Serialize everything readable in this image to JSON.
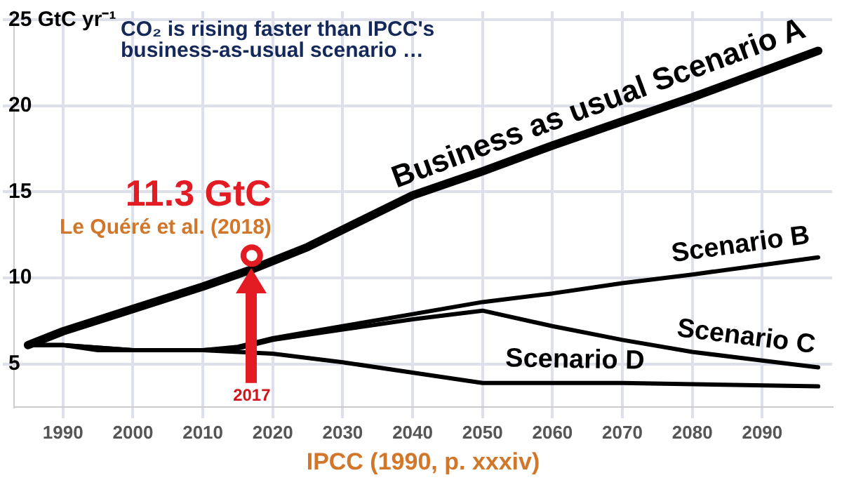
{
  "chart_data": {
    "type": "line",
    "title": "CO₂ is rising faster than IPCC's business-as-usual scenario …",
    "xlabel": "IPCC (1990, p. xxxiv)",
    "x": [
      1985,
      1990,
      2000,
      2010,
      2017,
      2025,
      2040,
      2050,
      2060,
      2070,
      2080,
      2098
    ],
    "series": [
      {
        "name": "Business as usual Scenario A",
        "color": "#000000",
        "values": [
          6.1,
          6.9,
          8.2,
          9.5,
          10.5,
          11.8,
          14.8,
          16.2,
          17.7,
          19.1,
          20.5,
          23.2
        ]
      },
      {
        "name": "Scenario B",
        "color": "#000000",
        "x": [
          1985,
          1990,
          2000,
          2010,
          2015,
          2020,
          2030,
          2040,
          2050,
          2060,
          2070,
          2080,
          2098
        ],
        "values": [
          6.1,
          6.1,
          5.8,
          5.8,
          6.0,
          6.5,
          7.2,
          7.9,
          8.6,
          9.1,
          9.7,
          10.2,
          11.2
        ]
      },
      {
        "name": "Scenario C",
        "color": "#000000",
        "x": [
          1985,
          1990,
          2000,
          2010,
          2015,
          2020,
          2030,
          2040,
          2050,
          2060,
          2070,
          2080,
          2098
        ],
        "values": [
          6.1,
          6.1,
          5.8,
          5.8,
          5.9,
          6.4,
          7.0,
          7.6,
          8.1,
          7.2,
          6.4,
          5.7,
          4.8
        ]
      },
      {
        "name": "Scenario D",
        "color": "#000000",
        "x": [
          1985,
          1990,
          1995,
          2010,
          2020,
          2030,
          2040,
          2050,
          2070,
          2098
        ],
        "values": [
          6.1,
          6.1,
          5.8,
          5.8,
          5.6,
          5.1,
          4.5,
          3.9,
          3.9,
          3.7
        ]
      }
    ],
    "xlim": [
      1983,
      2100
    ],
    "xticks": [
      1990,
      2000,
      2010,
      2020,
      2030,
      2040,
      2050,
      2060,
      2070,
      2080,
      2090
    ],
    "ylim": [
      2.5,
      25.5
    ],
    "yticks": [
      5,
      10,
      15,
      20,
      {
        "value": 25,
        "label": "25 GtC yr⁻¹"
      }
    ],
    "grid": true,
    "legend": false,
    "annotations": [
      {
        "text": "11.3 GtC",
        "x": 2017,
        "y": 11.3
      },
      "Le Quéré et al. (2018)",
      "2017"
    ]
  }
}
